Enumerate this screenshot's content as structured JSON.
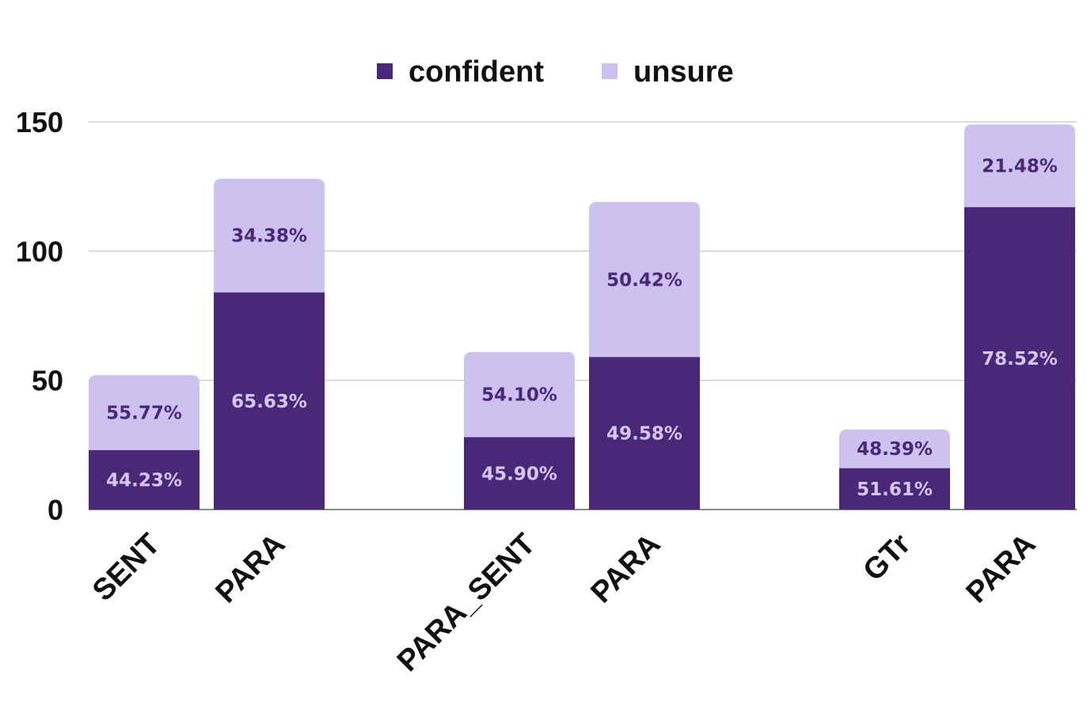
{
  "chart_data": {
    "type": "bar",
    "stacked": true,
    "categories": [
      "SENT",
      "PARA",
      "PARA_SENT",
      "PARA",
      "GTr",
      "PARA"
    ],
    "groups": [
      [
        0,
        1
      ],
      [
        2,
        3
      ],
      [
        4,
        5
      ]
    ],
    "series": [
      {
        "name": "confident",
        "color": "#4a2878",
        "values": [
          23,
          84,
          28,
          59,
          16,
          117
        ],
        "labels": [
          "44.23%",
          "65.63%",
          "45.90%",
          "49.58%",
          "51.61%",
          "78.52%"
        ],
        "label_color": "#d4c8f0"
      },
      {
        "name": "unsure",
        "color": "#cdc2ee",
        "values": [
          29,
          44,
          33,
          60,
          15,
          32
        ],
        "labels": [
          "55.77%",
          "34.38%",
          "54.10%",
          "50.42%",
          "48.39%",
          "21.48%"
        ],
        "label_color": "#4a2878"
      }
    ],
    "y_ticks": [
      "0",
      "50",
      "100",
      "150"
    ],
    "ylim": [
      0,
      150
    ],
    "grid": true,
    "legend_position": "top-center",
    "xlabel": "",
    "ylabel": ""
  }
}
